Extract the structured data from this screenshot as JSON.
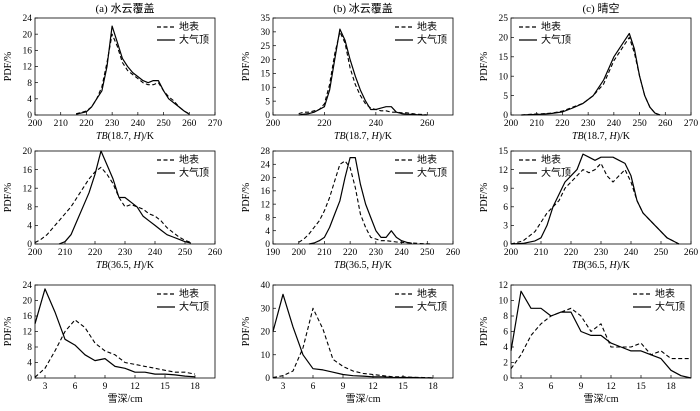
{
  "legend_labels": [
    "地表",
    "大气顶"
  ],
  "chart_data": [
    {
      "type": "line",
      "title": "(a) 水云覆盖",
      "xlabel_main": "TB",
      "xlabel_rest": "(18.7, ",
      "xlabel_h": "H",
      "xlabel_end": ")/K",
      "ylabel": "PDF/%",
      "xlim": [
        200,
        270
      ],
      "ylim": [
        0,
        24
      ],
      "xticks": [
        200,
        210,
        220,
        230,
        240,
        250,
        260,
        270
      ],
      "yticks": [
        0,
        4,
        8,
        12,
        16,
        20,
        24
      ],
      "legend": "top-right",
      "series": [
        {
          "name": "地表",
          "x": [
            216,
            220,
            222,
            224,
            226,
            228,
            230,
            232,
            234,
            236,
            238,
            240,
            242,
            244,
            246,
            248,
            250,
            252,
            254,
            256,
            258,
            260
          ],
          "y": [
            0.3,
            1,
            2,
            4,
            7,
            13,
            20,
            17,
            13,
            11,
            10,
            9,
            8,
            7.5,
            7.5,
            8,
            6,
            4.5,
            3.5,
            2,
            1,
            0.3
          ]
        },
        {
          "name": "大气顶",
          "x": [
            216,
            220,
            222,
            224,
            226,
            228,
            230,
            232,
            234,
            236,
            238,
            240,
            242,
            244,
            246,
            248,
            250,
            252,
            254,
            256,
            258,
            260
          ],
          "y": [
            0.2,
            0.8,
            2,
            4,
            6,
            12,
            22,
            18,
            14,
            12,
            10.5,
            9.5,
            8.5,
            8,
            8.5,
            8.5,
            6,
            4,
            3,
            2,
            1,
            0.2
          ]
        }
      ]
    },
    {
      "type": "line",
      "title": "(b) 冰云覆盖",
      "xlabel_main": "TB",
      "xlabel_rest": "(18.7, ",
      "xlabel_h": "H",
      "xlabel_end": ")/K",
      "ylabel": "PDF/%",
      "xlim": [
        200,
        270
      ],
      "ylim": [
        0,
        35
      ],
      "xticks": [
        200,
        220,
        240,
        260
      ],
      "yticks": [
        0,
        5,
        10,
        15,
        20,
        25,
        30,
        35
      ],
      "legend": "top-right",
      "series": [
        {
          "name": "地表",
          "x": [
            210,
            212,
            214,
            216,
            218,
            220,
            222,
            224,
            226,
            228,
            230,
            232,
            234,
            236,
            238,
            240,
            242,
            244,
            246,
            248,
            250,
            252,
            254,
            256,
            258,
            260
          ],
          "y": [
            0.5,
            1,
            1,
            1.5,
            2,
            4,
            11,
            22,
            30,
            26,
            17,
            11,
            7,
            4,
            2.5,
            2,
            1.5,
            1.5,
            1,
            1,
            0.8,
            0.8,
            0.5,
            0.3,
            0.2,
            0
          ]
        },
        {
          "name": "大气顶",
          "x": [
            210,
            212,
            214,
            216,
            218,
            220,
            222,
            224,
            226,
            228,
            230,
            232,
            234,
            236,
            238,
            240,
            242,
            244,
            246,
            248,
            250,
            252,
            254,
            256,
            258,
            260
          ],
          "y": [
            0,
            0.3,
            0.5,
            1,
            2,
            3,
            9,
            20,
            31,
            27,
            20,
            14,
            9,
            5,
            2,
            2,
            2.5,
            3,
            3,
            1,
            0.5,
            0.3,
            0.2,
            0.1,
            0,
            0
          ]
        }
      ]
    },
    {
      "type": "line",
      "title": "(c) 晴空",
      "xlabel_main": "TB",
      "xlabel_rest": "(18.7, ",
      "xlabel_h": "H",
      "xlabel_end": ")/K",
      "ylabel": "PDF/%",
      "xlim": [
        200,
        270
      ],
      "ylim": [
        0,
        25
      ],
      "xticks": [
        200,
        210,
        220,
        230,
        240,
        250,
        260,
        270
      ],
      "yticks": [
        0,
        5,
        10,
        15,
        20,
        25
      ],
      "legend": "top-left",
      "series": [
        {
          "name": "地表",
          "x": [
            204,
            208,
            212,
            216,
            220,
            224,
            228,
            232,
            236,
            240,
            244,
            246,
            248,
            250,
            252,
            254,
            256,
            258
          ],
          "y": [
            0,
            0.2,
            0.3,
            0.5,
            1,
            2,
            3,
            5,
            8,
            14,
            18,
            20,
            16,
            10,
            5,
            2,
            0.5,
            0
          ],
          "y_note": ""
        },
        {
          "name": "大气顶",
          "x": [
            204,
            208,
            212,
            216,
            220,
            224,
            228,
            232,
            236,
            240,
            244,
            246,
            248,
            250,
            252,
            254,
            256,
            258
          ],
          "y": [
            0,
            0.1,
            0.2,
            0.4,
            0.8,
            1.8,
            3,
            5,
            9,
            15,
            19,
            21,
            17,
            10,
            5,
            2,
            0.5,
            0
          ]
        }
      ]
    },
    {
      "type": "line",
      "title": "",
      "xlabel_main": "TB",
      "xlabel_rest": "(36.5, ",
      "xlabel_h": "H",
      "xlabel_end": ")/K",
      "ylabel": "PDF/%",
      "xlim": [
        200,
        260
      ],
      "ylim": [
        0,
        20
      ],
      "xticks": [
        200,
        210,
        220,
        230,
        240,
        250,
        260
      ],
      "yticks": [
        0,
        4,
        8,
        12,
        16,
        20
      ],
      "legend": "top-right",
      "series": [
        {
          "name": "地表",
          "x": [
            200,
            202,
            204,
            206,
            208,
            210,
            212,
            214,
            216,
            218,
            220,
            222,
            224,
            226,
            228,
            230,
            232,
            234,
            236,
            238,
            240,
            242,
            244,
            246,
            248,
            250,
            252
          ],
          "y": [
            0.3,
            1,
            2,
            3.5,
            5,
            6.5,
            8,
            10,
            12,
            14,
            15.5,
            16.5,
            15,
            13,
            10,
            8,
            8.5,
            8,
            7.5,
            6.5,
            6,
            5,
            3.5,
            2.5,
            1.5,
            0.8,
            0.3
          ]
        },
        {
          "name": "大气顶",
          "x": [
            208,
            210,
            212,
            214,
            216,
            218,
            220,
            222,
            224,
            226,
            228,
            230,
            232,
            234,
            236,
            238,
            240,
            242,
            244,
            246,
            248,
            250,
            252
          ],
          "y": [
            0,
            0.5,
            2,
            5,
            8,
            11,
            15,
            20,
            17,
            14,
            10,
            10,
            9,
            8,
            6,
            5,
            4,
            3,
            2,
            1.5,
            1,
            0.5,
            0.2
          ]
        }
      ]
    },
    {
      "type": "line",
      "title": "",
      "xlabel_main": "TB",
      "xlabel_rest": "(36.5, ",
      "xlabel_h": "H",
      "xlabel_end": ")/K",
      "ylabel": "PDF/%",
      "xlim": [
        190,
        260
      ],
      "ylim": [
        0,
        28
      ],
      "xticks": [
        190,
        200,
        210,
        220,
        230,
        240,
        250,
        260
      ],
      "yticks": [
        0,
        4,
        8,
        12,
        16,
        20,
        24,
        28
      ],
      "legend": "top-right",
      "series": [
        {
          "name": "地表",
          "x": [
            200,
            202,
            204,
            206,
            208,
            210,
            212,
            214,
            216,
            218,
            220,
            222,
            224,
            226,
            228,
            230,
            232,
            234,
            236,
            238,
            240,
            242,
            244,
            246,
            248,
            250,
            252
          ],
          "y": [
            0.5,
            1.5,
            3,
            5,
            7,
            10,
            14,
            19,
            24,
            25,
            23,
            17,
            9,
            5,
            2,
            1.5,
            1,
            1,
            0.8,
            0.6,
            0.5,
            0.4,
            0.3,
            0.2,
            0.1,
            0.05,
            0
          ]
        },
        {
          "name": "大气顶",
          "x": [
            204,
            206,
            208,
            210,
            212,
            214,
            216,
            218,
            220,
            222,
            224,
            226,
            228,
            230,
            232,
            234,
            236,
            238,
            240,
            242,
            244
          ],
          "y": [
            0,
            0.3,
            1,
            2,
            5,
            9,
            13,
            20,
            26,
            26,
            18,
            12,
            8,
            4,
            2,
            2,
            4,
            2,
            1,
            0.5,
            0.2
          ]
        }
      ]
    },
    {
      "type": "line",
      "title": "",
      "xlabel_main": "TB",
      "xlabel_rest": "(36.5, ",
      "xlabel_h": "H",
      "xlabel_end": ")/K",
      "ylabel": "PDF/%",
      "xlim": [
        200,
        260
      ],
      "ylim": [
        0,
        15
      ],
      "xticks": [
        200,
        210,
        220,
        230,
        240,
        250,
        260
      ],
      "yticks": [
        0,
        3,
        6,
        9,
        12,
        15
      ],
      "legend": "top-left",
      "series": [
        {
          "name": "地表",
          "x": [
            200,
            204,
            208,
            210,
            212,
            214,
            216,
            218,
            220,
            222,
            224,
            226,
            228,
            230,
            232,
            234,
            236,
            238,
            240,
            242,
            244,
            246,
            248,
            250,
            252,
            254,
            256
          ],
          "y": [
            0,
            0.5,
            2,
            3.5,
            5,
            6,
            7,
            9,
            10,
            11,
            12,
            11.5,
            12,
            13,
            11,
            10,
            11,
            12,
            10,
            7,
            5,
            4,
            3,
            2,
            1,
            0.5,
            0
          ]
        },
        {
          "name": "大气顶",
          "x": [
            200,
            204,
            208,
            210,
            212,
            214,
            216,
            218,
            220,
            222,
            224,
            226,
            228,
            230,
            232,
            234,
            236,
            238,
            240,
            242,
            244,
            246,
            248,
            250,
            252,
            254,
            256
          ],
          "y": [
            0,
            0.1,
            0.5,
            1,
            3,
            6,
            8,
            10,
            11,
            12,
            14.5,
            14,
            13.5,
            14,
            14,
            14,
            13.5,
            13,
            11,
            7,
            5,
            4,
            3,
            2,
            1,
            0.5,
            0
          ]
        }
      ]
    },
    {
      "type": "line",
      "title": "",
      "xlabel": "雪深/cm",
      "ylabel": "PDF/%",
      "xlim": [
        2,
        20
      ],
      "ylim": [
        0,
        24
      ],
      "xticks": [
        3,
        6,
        9,
        12,
        15,
        18
      ],
      "yticks": [
        0,
        4,
        8,
        12,
        16,
        20,
        24
      ],
      "legend": "top-right",
      "series": [
        {
          "name": "地表",
          "x": [
            2,
            3,
            4,
            5,
            6,
            7,
            8,
            9,
            10,
            11,
            12,
            13,
            14,
            15,
            16,
            17,
            18
          ],
          "y": [
            0.2,
            2.5,
            7,
            12,
            15,
            13,
            9,
            7,
            6,
            4,
            3.5,
            3,
            2.5,
            2,
            1.5,
            1.5,
            1
          ]
        },
        {
          "name": "大气顶",
          "x": [
            2,
            3,
            4,
            5,
            6,
            7,
            8,
            9,
            10,
            11,
            12,
            13,
            14,
            15,
            16,
            17,
            18
          ],
          "y": [
            14,
            23,
            17,
            10,
            8.5,
            6,
            4.5,
            5,
            3,
            2.5,
            1.5,
            1.5,
            1,
            1,
            0.8,
            0.5,
            0.3
          ]
        }
      ]
    },
    {
      "type": "line",
      "title": "",
      "xlabel": "雪深/cm",
      "ylabel": "PDF/%",
      "xlim": [
        2,
        20
      ],
      "ylim": [
        0,
        40
      ],
      "xticks": [
        3,
        6,
        9,
        12,
        15,
        18
      ],
      "yticks": [
        0,
        10,
        20,
        30,
        40
      ],
      "legend": "top-right",
      "series": [
        {
          "name": "地表",
          "x": [
            2,
            3,
            4,
            5,
            6,
            7,
            8,
            9,
            10,
            11,
            12,
            13,
            14,
            15,
            16,
            17,
            18
          ],
          "y": [
            0.2,
            1,
            3,
            13,
            30,
            21,
            8,
            5,
            3,
            2,
            1.5,
            1,
            0.5,
            0.5,
            0.3,
            0.2,
            0.1
          ]
        },
        {
          "name": "大气顶",
          "x": [
            2,
            3,
            4,
            5,
            6,
            7,
            8,
            9,
            10,
            11,
            12,
            13,
            14,
            15,
            16,
            17,
            18
          ],
          "y": [
            20,
            36,
            22,
            10,
            4,
            3.5,
            2.5,
            1.5,
            1,
            0.8,
            0.5,
            0.5,
            0.3,
            0.2,
            0.2,
            0.1,
            0
          ]
        }
      ]
    },
    {
      "type": "line",
      "title": "",
      "xlabel": "雪深/cm",
      "ylabel": "PDF/%",
      "xlim": [
        2,
        20
      ],
      "ylim": [
        0,
        12
      ],
      "xticks": [
        3,
        6,
        9,
        12,
        15,
        18
      ],
      "yticks": [
        0,
        2,
        4,
        6,
        8,
        10,
        12
      ],
      "legend": "top-right",
      "series": [
        {
          "name": "地表",
          "x": [
            2,
            3,
            4,
            5,
            6,
            7,
            8,
            9,
            10,
            11,
            12,
            13,
            14,
            15,
            16,
            17,
            18,
            19,
            20
          ],
          "y": [
            1.2,
            3,
            5.5,
            7,
            8,
            8.5,
            9,
            8,
            6,
            7,
            4,
            4,
            4,
            4.5,
            3,
            3.5,
            2.5,
            2.5,
            2.5
          ]
        },
        {
          "name": "大气顶",
          "x": [
            2,
            3,
            4,
            5,
            6,
            7,
            8,
            9,
            10,
            11,
            12,
            13,
            14,
            15,
            16,
            17,
            18,
            19,
            20
          ],
          "y": [
            3.5,
            11.2,
            9,
            9,
            8,
            8.5,
            8.5,
            6,
            5.5,
            5.5,
            4.5,
            4,
            3.5,
            3.5,
            3,
            2.5,
            1,
            0.3,
            0
          ]
        }
      ]
    }
  ]
}
